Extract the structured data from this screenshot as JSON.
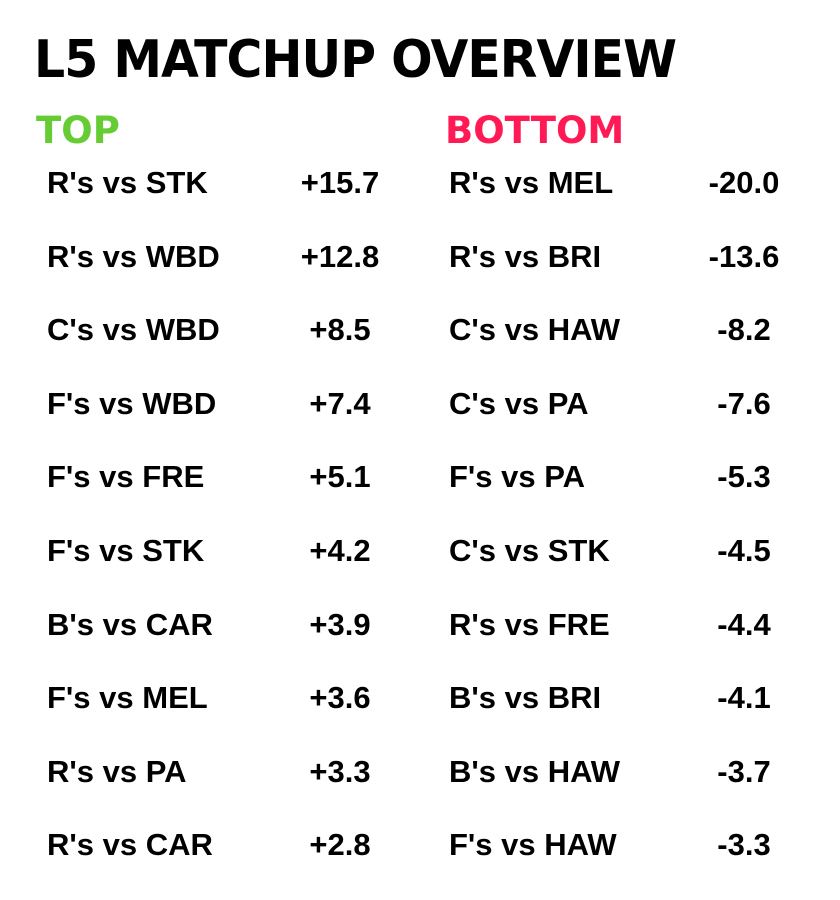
{
  "title": "L5 MATCHUP OVERVIEW",
  "colors": {
    "top_header": "#66cc33",
    "bottom_header": "#ff1a55",
    "text": "#000000",
    "background": "#ffffff"
  },
  "top": {
    "header": "TOP",
    "rows": [
      {
        "matchup": "R's vs STK",
        "value": "+15.7"
      },
      {
        "matchup": "R's vs WBD",
        "value": "+12.8"
      },
      {
        "matchup": "C's vs WBD",
        "value": "+8.5"
      },
      {
        "matchup": "F's vs WBD",
        "value": "+7.4"
      },
      {
        "matchup": "F's vs FRE",
        "value": "+5.1"
      },
      {
        "matchup": "F's vs STK",
        "value": "+4.2"
      },
      {
        "matchup": "B's vs CAR",
        "value": "+3.9"
      },
      {
        "matchup": "F's vs MEL",
        "value": "+3.6"
      },
      {
        "matchup": "R's vs PA",
        "value": "+3.3"
      },
      {
        "matchup": "R's vs CAR",
        "value": "+2.8"
      }
    ]
  },
  "bottom": {
    "header": "BOTTOM",
    "rows": [
      {
        "matchup": "R's vs MEL",
        "value": "-20.0"
      },
      {
        "matchup": "R's vs BRI",
        "value": "-13.6"
      },
      {
        "matchup": "C's vs HAW",
        "value": "-8.2"
      },
      {
        "matchup": "C's vs PA",
        "value": "-7.6"
      },
      {
        "matchup": "F's vs PA",
        "value": "-5.3"
      },
      {
        "matchup": "C's vs STK",
        "value": "-4.5"
      },
      {
        "matchup": "R's vs FRE",
        "value": "-4.4"
      },
      {
        "matchup": "B's vs BRI",
        "value": "-4.1"
      },
      {
        "matchup": "B's vs HAW",
        "value": "-3.7"
      },
      {
        "matchup": "F's vs HAW",
        "value": "-3.3"
      }
    ]
  }
}
